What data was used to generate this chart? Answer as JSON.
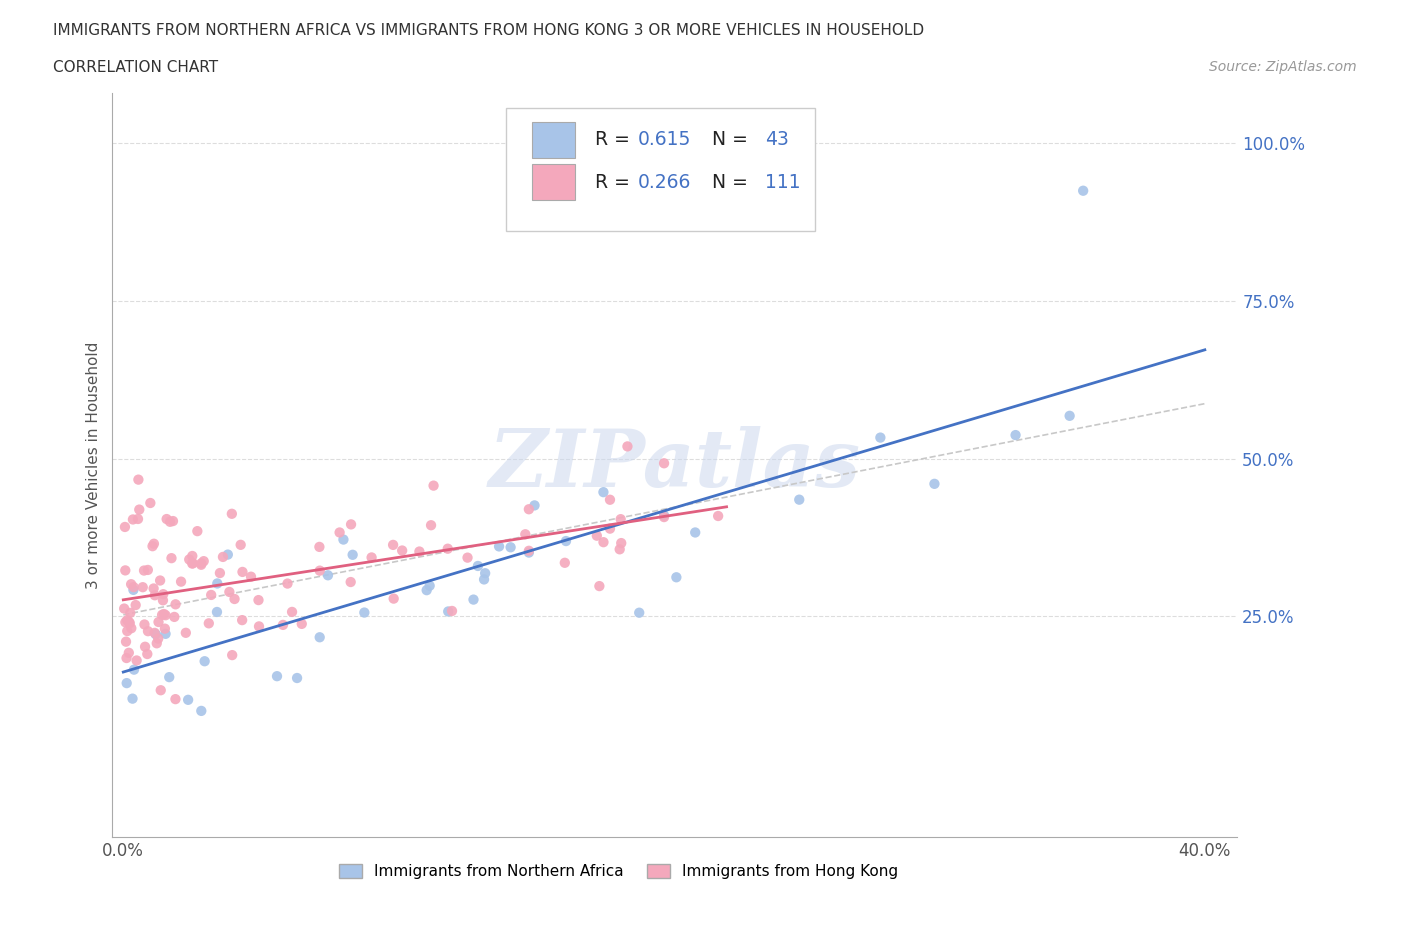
{
  "title_line1": "IMMIGRANTS FROM NORTHERN AFRICA VS IMMIGRANTS FROM HONG KONG 3 OR MORE VEHICLES IN HOUSEHOLD",
  "title_line2": "CORRELATION CHART",
  "source_text": "Source: ZipAtlas.com",
  "ylabel": "3 or more Vehicles in Household",
  "blue_color": "#a8c4e8",
  "pink_color": "#f4a8bc",
  "blue_line_color": "#4472c4",
  "pink_line_color": "#e06080",
  "trend_line_color": "#c8c8c8",
  "R_blue": 0.615,
  "N_blue": 43,
  "R_pink": 0.266,
  "N_pink": 111,
  "legend_label_blue": "Immigrants from Northern Africa",
  "legend_label_pink": "Immigrants from Hong Kong",
  "watermark": "ZIPatlas",
  "label_color": "#4472c4",
  "label_black": "#333333",
  "source_color": "#999999"
}
